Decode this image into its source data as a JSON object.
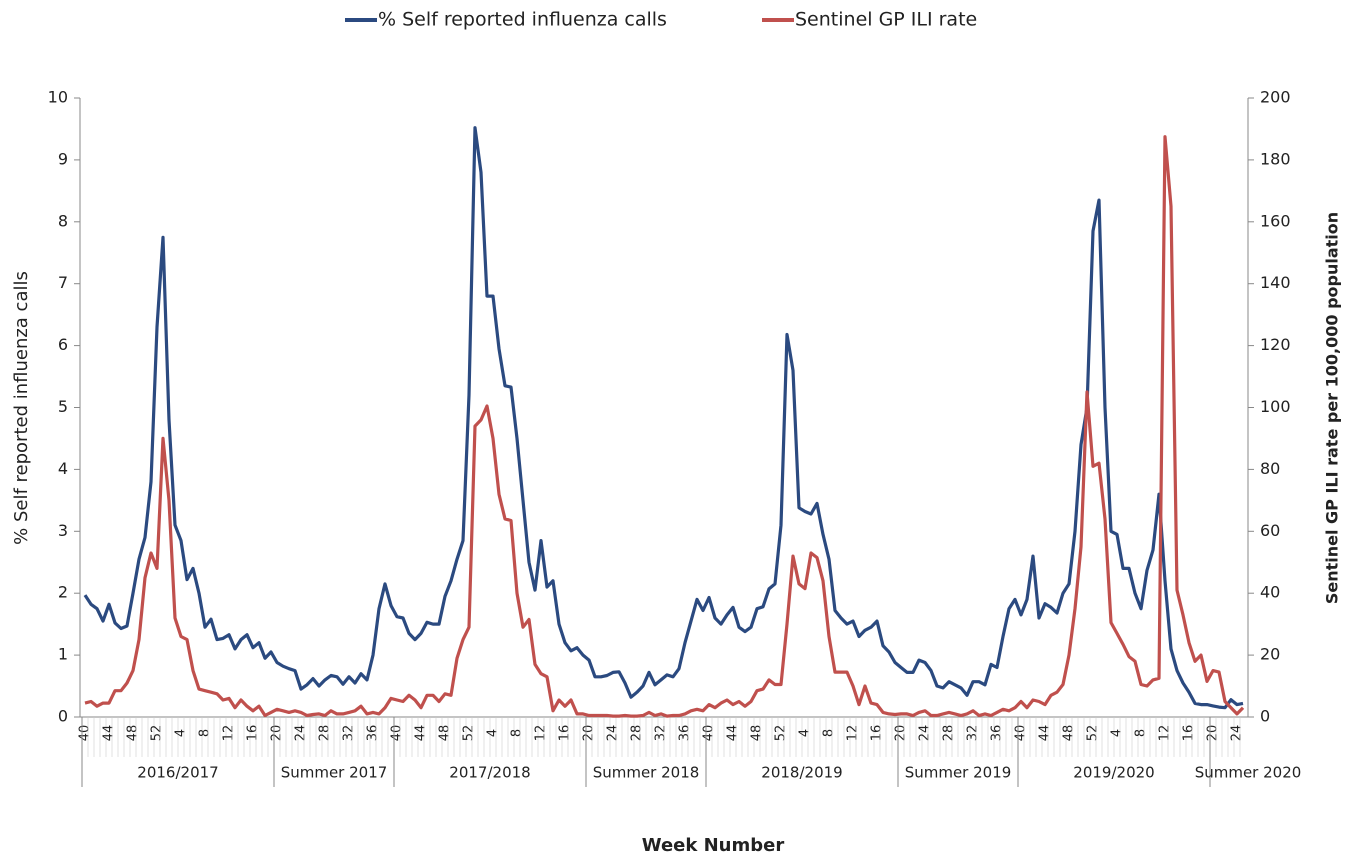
{
  "chart_data": {
    "type": "line",
    "xlabel": "Week Number",
    "ylabel": "% Self reported influenza calls",
    "y2label": "Sentinel GP ILI rate per 100,000 population",
    "legend": "top",
    "ylim": [
      0,
      10
    ],
    "yticks": [
      0,
      1,
      2,
      3,
      4,
      5,
      6,
      7,
      8,
      9,
      10
    ],
    "y2lim": [
      0,
      200
    ],
    "y2ticks": [
      0,
      20,
      40,
      60,
      80,
      100,
      120,
      140,
      160,
      180,
      200
    ],
    "categories": [
      "40",
      null,
      null,
      null,
      "44",
      null,
      null,
      null,
      "48",
      null,
      null,
      null,
      "52",
      null,
      null,
      null,
      "4",
      null,
      null,
      null,
      "8",
      null,
      null,
      null,
      "12",
      null,
      null,
      null,
      "16",
      null,
      null,
      null,
      "20",
      null,
      null,
      null,
      "24",
      null,
      null,
      null,
      "28",
      null,
      null,
      null,
      "32",
      null,
      null,
      null,
      "36",
      null,
      null,
      null,
      "40",
      null,
      null,
      null,
      "44",
      null,
      null,
      null,
      "48",
      null,
      null,
      null,
      "52",
      null,
      null,
      null,
      "4",
      null,
      null,
      null,
      "8",
      null,
      null,
      null,
      "12",
      null,
      null,
      null,
      "16",
      null,
      null,
      null,
      "20",
      null,
      null,
      null,
      "24",
      null,
      null,
      null,
      "28",
      null,
      null,
      null,
      "32",
      null,
      null,
      null,
      "36",
      null,
      null,
      null,
      "40",
      null,
      null,
      null,
      "44",
      null,
      null,
      null,
      "48",
      null,
      null,
      null,
      "52",
      null,
      null,
      null,
      "4",
      null,
      null,
      null,
      "8",
      null,
      null,
      null,
      "12",
      null,
      null,
      null,
      "16",
      null,
      null,
      null,
      "20",
      null,
      null,
      null,
      "24",
      null,
      null,
      null,
      "28",
      null,
      null,
      null,
      "32",
      null,
      null,
      null,
      "36",
      null,
      null,
      null,
      "40",
      null,
      null,
      null,
      "44",
      null,
      null,
      null,
      "48",
      null,
      null,
      null,
      "52",
      null,
      null,
      null,
      "4",
      null,
      null,
      null,
      "8",
      null,
      null,
      null,
      "12",
      null,
      null,
      null,
      "16",
      null,
      null,
      null,
      "20",
      null,
      null,
      null,
      "24",
      null
    ],
    "seasons": [
      "2016/2017",
      "2016/2017",
      "2016/2017",
      "2016/2017",
      "2016/2017",
      "2016/2017",
      "2016/2017",
      "2016/2017",
      "2016/2017",
      "2016/2017",
      "2016/2017",
      "2016/2017",
      "2016/2017",
      "2016/2017",
      "2016/2017",
      "2016/2017",
      "2016/2017",
      "2016/2017",
      "2016/2017",
      "2016/2017",
      "2016/2017",
      "2016/2017",
      "2016/2017",
      "2016/2017",
      "2016/2017",
      "2016/2017",
      "2016/2017",
      "2016/2017",
      "2016/2017",
      "2016/2017",
      "2016/2017",
      "2016/2017",
      "Summer 2017",
      "Summer 2017",
      "Summer 2017",
      "Summer 2017",
      "Summer 2017",
      "Summer 2017",
      "Summer 2017",
      "Summer 2017",
      "Summer 2017",
      "Summer 2017",
      "Summer 2017",
      "Summer 2017",
      "Summer 2017",
      "Summer 2017",
      "Summer 2017",
      "Summer 2017",
      "Summer 2017",
      "Summer 2017",
      "Summer 2017",
      "Summer 2017",
      "2017/2018",
      "2017/2018",
      "2017/2018",
      "2017/2018",
      "2017/2018",
      "2017/2018",
      "2017/2018",
      "2017/2018",
      "2017/2018",
      "2017/2018",
      "2017/2018",
      "2017/2018",
      "2017/2018",
      "2017/2018",
      "2017/2018",
      "2017/2018",
      "2017/2018",
      "2017/2018",
      "2017/2018",
      "2017/2018",
      "2017/2018",
      "2017/2018",
      "2017/2018",
      "2017/2018",
      "2017/2018",
      "2017/2018",
      "2017/2018",
      "2017/2018",
      "2017/2018",
      "2017/2018",
      "2017/2018",
      "2017/2018",
      "Summer 2018",
      "Summer 2018",
      "Summer 2018",
      "Summer 2018",
      "Summer 2018",
      "Summer 2018",
      "Summer 2018",
      "Summer 2018",
      "Summer 2018",
      "Summer 2018",
      "Summer 2018",
      "Summer 2018",
      "Summer 2018",
      "Summer 2018",
      "Summer 2018",
      "Summer 2018",
      "Summer 2018",
      "Summer 2018",
      "Summer 2018",
      "Summer 2018",
      "2018/2019",
      "2018/2019",
      "2018/2019",
      "2018/2019",
      "2018/2019",
      "2018/2019",
      "2018/2019",
      "2018/2019",
      "2018/2019",
      "2018/2019",
      "2018/2019",
      "2018/2019",
      "2018/2019",
      "2018/2019",
      "2018/2019",
      "2018/2019",
      "2018/2019",
      "2018/2019",
      "2018/2019",
      "2018/2019",
      "2018/2019",
      "2018/2019",
      "2018/2019",
      "2018/2019",
      "2018/2019",
      "2018/2019",
      "2018/2019",
      "2018/2019",
      "2018/2019",
      "2018/2019",
      "2018/2019",
      "2018/2019",
      "Summer 2019",
      "Summer 2019",
      "Summer 2019",
      "Summer 2019",
      "Summer 2019",
      "Summer 2019",
      "Summer 2019",
      "Summer 2019",
      "Summer 2019",
      "Summer 2019",
      "Summer 2019",
      "Summer 2019",
      "Summer 2019",
      "Summer 2019",
      "Summer 2019",
      "Summer 2019",
      "Summer 2019",
      "Summer 2019",
      "Summer 2019",
      "Summer 2019",
      "2019/2020",
      "2019/2020",
      "2019/2020",
      "2019/2020",
      "2019/2020",
      "2019/2020",
      "2019/2020",
      "2019/2020",
      "2019/2020",
      "2019/2020",
      "2019/2020",
      "2019/2020",
      "2019/2020",
      "2019/2020",
      "2019/2020",
      "2019/2020",
      "2019/2020",
      "2019/2020",
      "2019/2020",
      "2019/2020",
      "2019/2020",
      "2019/2020",
      "2019/2020",
      "2019/2020",
      "2019/2020",
      "2019/2020",
      "2019/2020",
      "2019/2020",
      "2019/2020",
      "2019/2020",
      "2019/2020",
      "2019/2020",
      "Summer 2020",
      "Summer 2020",
      "Summer 2020",
      "Summer 2020",
      "Summer 2020",
      "Summer 2020"
    ],
    "series": [
      {
        "name": "% Self reported influenza calls",
        "color": "#2b4a80",
        "axis": "y",
        "values": [
          1.97,
          1.82,
          1.75,
          1.55,
          1.82,
          1.52,
          1.43,
          1.47,
          2.0,
          2.55,
          2.9,
          3.8,
          6.3,
          7.75,
          4.8,
          3.1,
          2.85,
          2.22,
          2.4,
          2.0,
          1.45,
          1.58,
          1.25,
          1.27,
          1.33,
          1.1,
          1.25,
          1.33,
          1.12,
          1.2,
          0.95,
          1.05,
          0.88,
          0.82,
          0.78,
          0.75,
          0.45,
          0.52,
          0.62,
          0.5,
          0.6,
          0.67,
          0.65,
          0.53,
          0.65,
          0.55,
          0.7,
          0.6,
          1.0,
          1.75,
          2.15,
          1.8,
          1.62,
          1.6,
          1.35,
          1.25,
          1.35,
          1.53,
          1.5,
          1.5,
          1.95,
          2.2,
          2.55,
          2.85,
          5.2,
          9.52,
          8.8,
          6.8,
          6.8,
          5.95,
          5.35,
          5.33,
          4.5,
          3.5,
          2.5,
          2.05,
          2.85,
          2.1,
          2.2,
          1.5,
          1.2,
          1.07,
          1.12,
          1.0,
          0.92,
          0.65,
          0.65,
          0.67,
          0.72,
          0.73,
          0.55,
          0.32,
          0.4,
          0.5,
          0.72,
          0.52,
          0.6,
          0.68,
          0.65,
          0.78,
          1.2,
          1.55,
          1.9,
          1.72,
          1.93,
          1.6,
          1.5,
          1.65,
          1.77,
          1.45,
          1.38,
          1.45,
          1.75,
          1.78,
          2.07,
          2.15,
          3.1,
          6.18,
          5.6,
          3.38,
          3.32,
          3.28,
          3.45,
          2.95,
          2.55,
          1.72,
          1.6,
          1.5,
          1.55,
          1.3,
          1.4,
          1.45,
          1.55,
          1.15,
          1.05,
          0.88,
          0.8,
          0.72,
          0.72,
          0.92,
          0.88,
          0.75,
          0.5,
          0.47,
          0.57,
          0.52,
          0.47,
          0.35,
          0.57,
          0.57,
          0.52,
          0.85,
          0.8,
          1.3,
          1.75,
          1.9,
          1.65,
          1.9,
          2.6,
          1.6,
          1.83,
          1.77,
          1.68,
          2.0,
          2.15,
          3.0,
          4.4,
          5.0,
          7.85,
          8.35,
          5.0,
          3.0,
          2.95,
          2.4,
          2.4,
          2.0,
          1.75,
          2.37,
          2.7,
          3.6,
          2.2,
          1.1,
          0.75,
          0.55,
          0.4,
          0.22,
          0.2,
          0.2,
          0.18,
          0.16,
          0.15,
          0.28,
          0.2,
          0.22
        ]
      },
      {
        "name": "Sentinel GP ILI rate",
        "color": "#c0504d",
        "axis": "y2",
        "values": [
          4.5,
          5,
          3.5,
          4.5,
          4.5,
          8.5,
          8.5,
          11,
          15,
          25,
          45,
          53,
          48,
          90,
          70,
          32,
          26,
          25,
          15,
          9,
          8.5,
          8,
          7.5,
          5.5,
          6,
          3,
          5.5,
          3.5,
          2,
          3.5,
          0.5,
          1.5,
          2.5,
          2,
          1.5,
          2,
          1.5,
          0.5,
          0.8,
          1,
          0.5,
          2,
          1,
          1,
          1.5,
          2,
          3.5,
          1,
          1.5,
          1,
          3,
          6,
          5.5,
          5,
          7,
          5.5,
          3,
          7,
          7,
          5,
          7.5,
          7,
          19,
          25,
          29,
          94,
          96,
          100.5,
          90,
          72,
          64,
          63.5,
          40,
          29,
          31.5,
          17,
          14,
          13,
          2,
          5.5,
          3.5,
          5.5,
          1,
          1,
          0.5,
          0.5,
          0.5,
          0.5,
          0.3,
          0.3,
          0.5,
          0.3,
          0.3,
          0.5,
          1.5,
          0.5,
          1,
          0.3,
          0.5,
          0.5,
          1,
          2,
          2.5,
          2,
          4,
          3,
          4.5,
          5.5,
          4,
          5,
          3.5,
          5,
          8.5,
          9,
          12,
          10.5,
          10.5,
          30,
          52,
          43,
          41.5,
          53,
          51.5,
          44,
          26,
          14.5,
          14.5,
          14.5,
          10,
          4,
          10,
          4.5,
          4,
          1.5,
          1,
          0.8,
          1,
          1,
          0.5,
          1.5,
          2,
          0.5,
          0.5,
          1,
          1.5,
          1,
          0.5,
          1,
          2,
          0.5,
          1,
          0.5,
          1.5,
          2.5,
          2,
          3,
          5,
          3,
          5.5,
          5,
          4,
          7,
          8,
          10.5,
          20,
          35,
          55,
          105,
          81,
          82,
          64,
          30.5,
          27,
          23.5,
          19.5,
          18,
          10.5,
          10,
          12,
          12.5,
          187.5,
          165,
          41,
          33,
          24,
          18,
          20,
          11.5,
          15,
          14.5,
          5,
          3,
          1,
          3
        ]
      }
    ]
  }
}
